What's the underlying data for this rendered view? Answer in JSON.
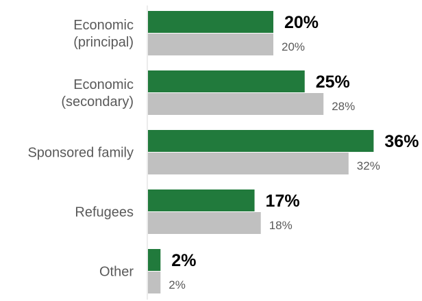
{
  "chart_data": {
    "type": "bar",
    "orientation": "horizontal",
    "categories": [
      [
        "Economic",
        "(principal)"
      ],
      [
        "Economic",
        "(secondary)"
      ],
      [
        "Sponsored family"
      ],
      [
        "Refugees"
      ],
      [
        "Other"
      ]
    ],
    "series": [
      {
        "values": [
          20,
          25,
          36,
          17,
          2
        ],
        "value_labels": [
          "20%",
          "25%",
          "36%",
          "17%",
          "2%"
        ],
        "color": "#217a3c"
      },
      {
        "values": [
          20,
          28,
          32,
          18,
          2
        ],
        "value_labels": [
          "20%",
          "28%",
          "32%",
          "18%",
          "2%"
        ],
        "color": "#c0c0c0"
      }
    ],
    "xlim": [
      0,
      40
    ],
    "grid": false,
    "legend": "none",
    "title": "",
    "xlabel": "",
    "ylabel": ""
  }
}
